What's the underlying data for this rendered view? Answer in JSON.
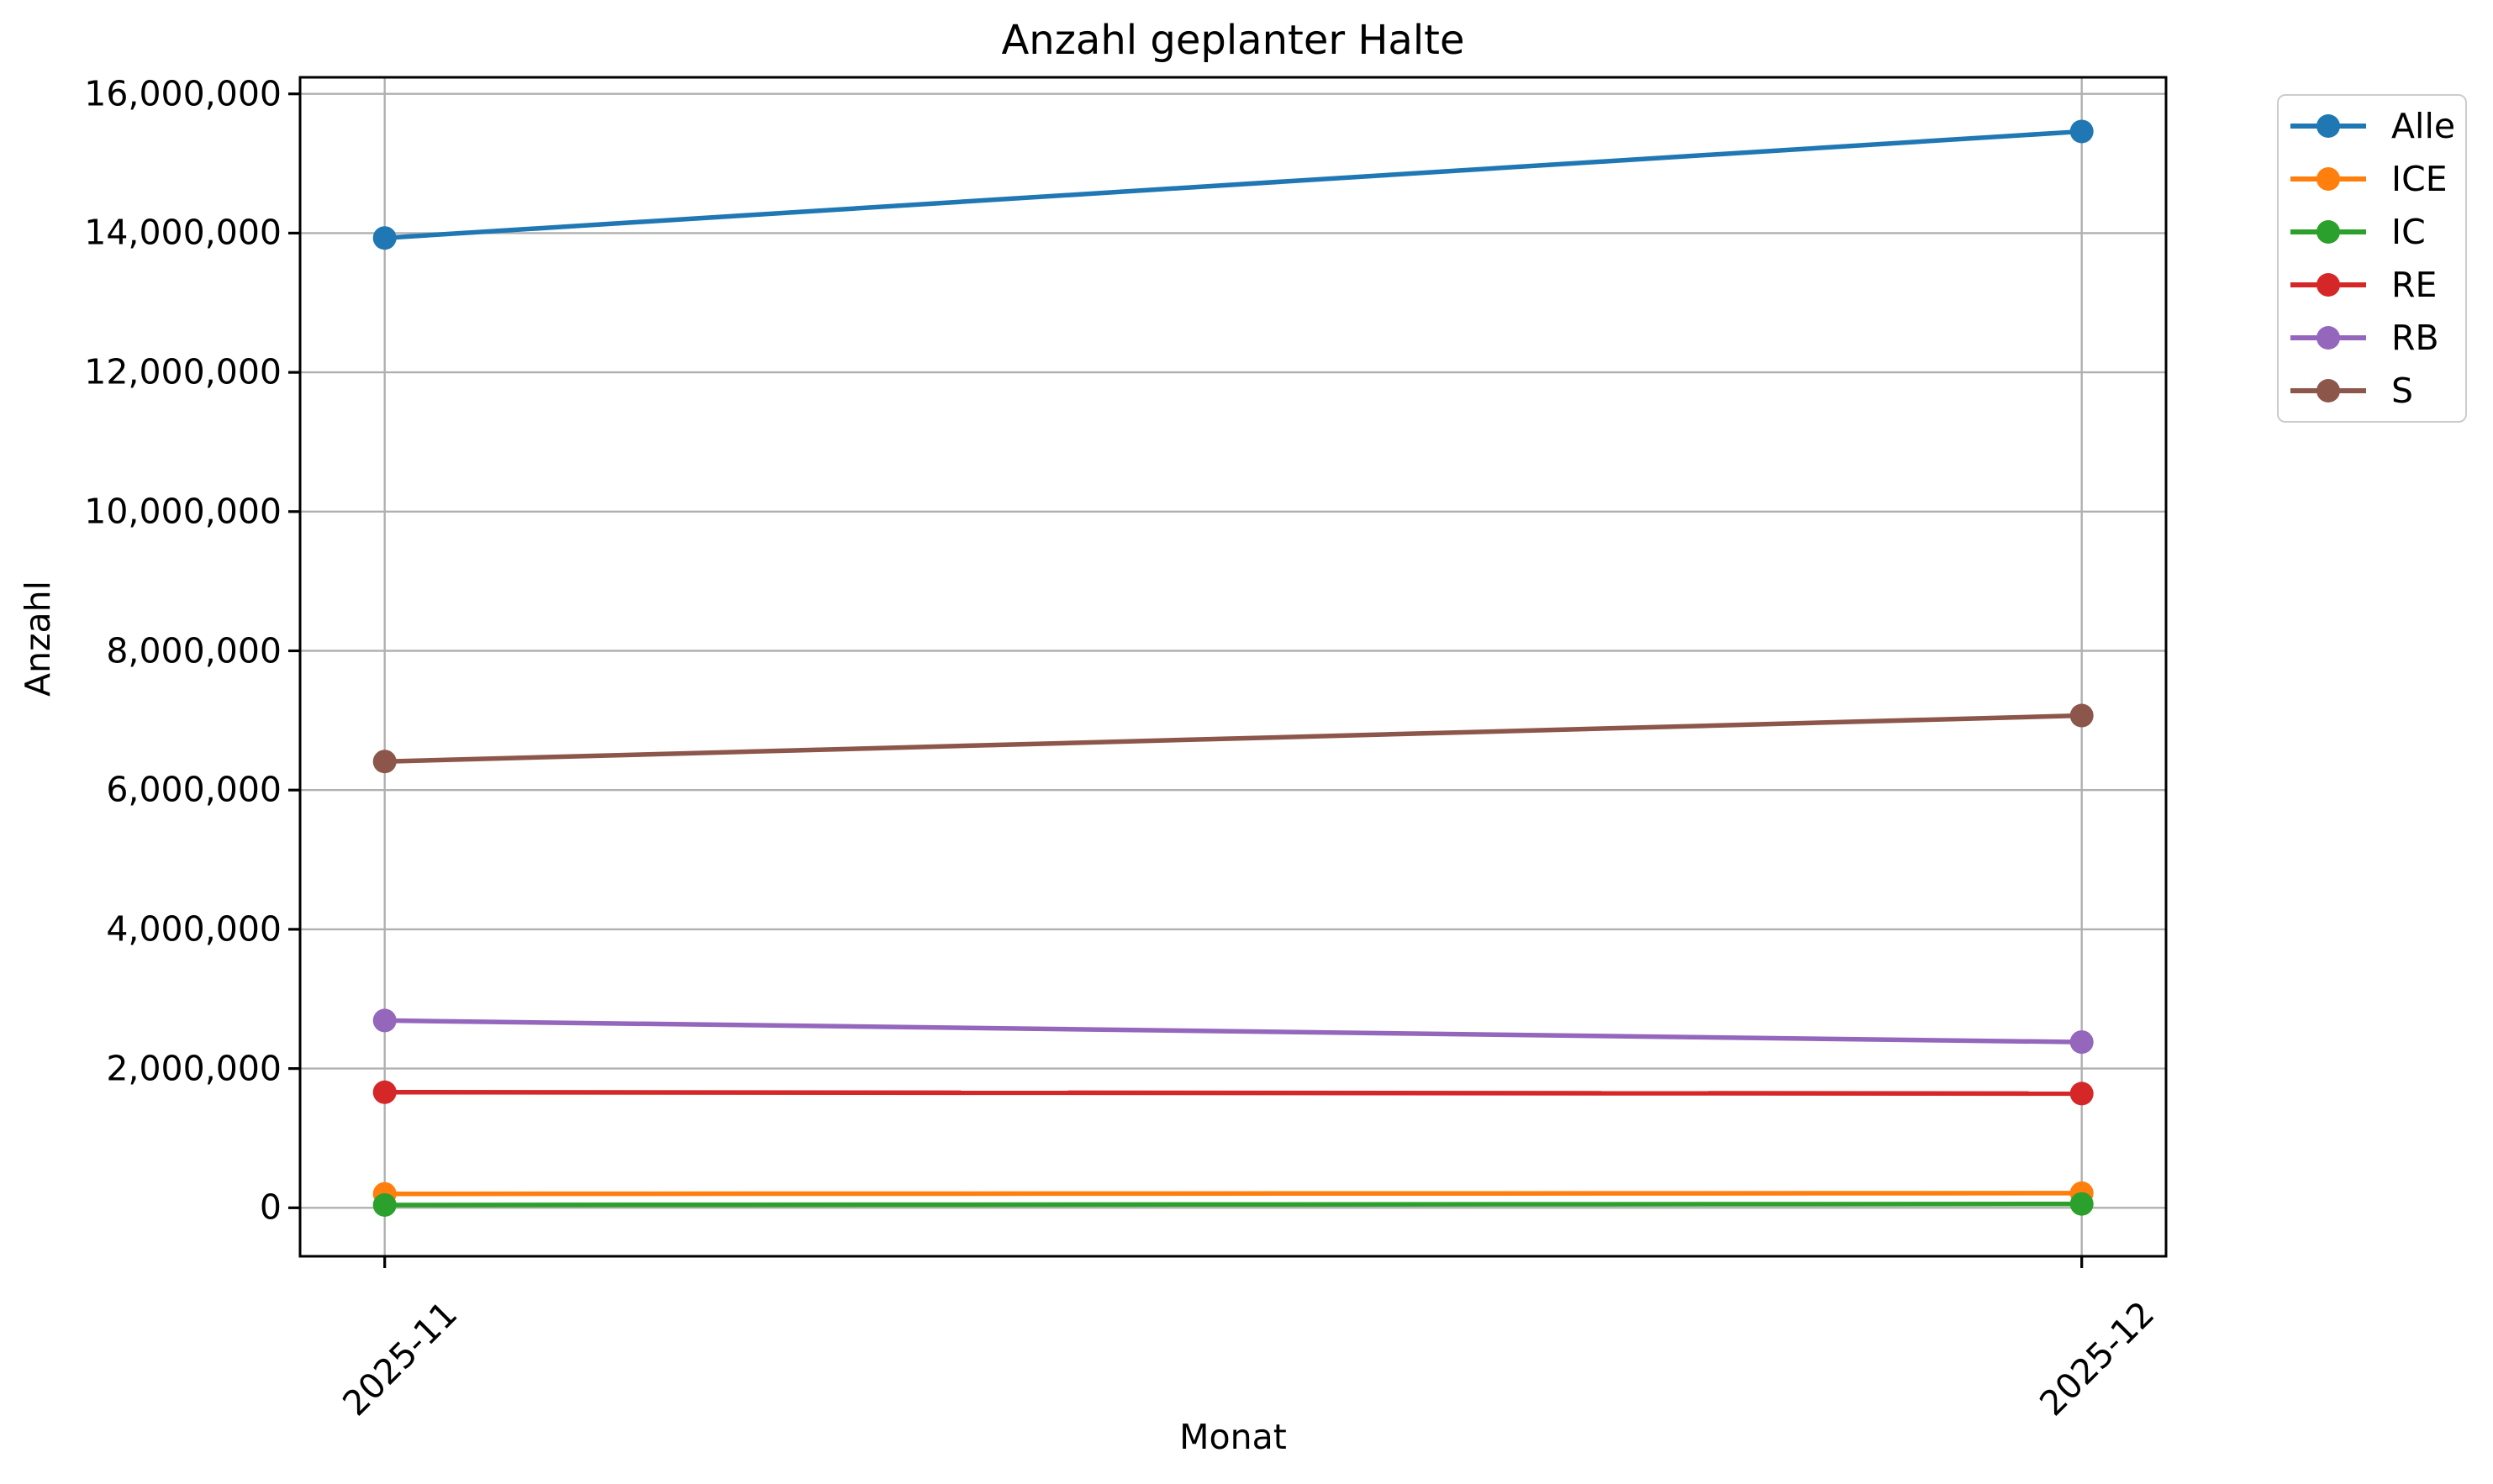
{
  "chart_data": {
    "type": "line",
    "title": "Anzahl geplanter Halte",
    "xlabel": "Monat",
    "ylabel": "Anzahl",
    "categories": [
      "2025-11",
      "2025-12"
    ],
    "series": [
      {
        "name": "Alle",
        "color": "#1f77b4",
        "values": [
          13930000,
          15460000
        ]
      },
      {
        "name": "ICE",
        "color": "#ff7f0e",
        "values": [
          200000,
          210000
        ]
      },
      {
        "name": "IC",
        "color": "#2ca02c",
        "values": [
          40000,
          55000
        ]
      },
      {
        "name": "RE",
        "color": "#d62728",
        "values": [
          1660000,
          1640000
        ]
      },
      {
        "name": "RB",
        "color": "#9467bd",
        "values": [
          2690000,
          2380000
        ]
      },
      {
        "name": "S",
        "color": "#8c564b",
        "values": [
          6410000,
          7070000
        ]
      }
    ],
    "yticks": [
      0,
      2000000,
      4000000,
      6000000,
      8000000,
      10000000,
      12000000,
      14000000,
      16000000
    ],
    "ytick_labels": [
      "0",
      "2,000,000",
      "4,000,000",
      "6,000,000",
      "8,000,000",
      "10,000,000",
      "12,000,000",
      "14,000,000",
      "16,000,000"
    ],
    "ylim": [
      -700000,
      16240000
    ],
    "xlim": [
      -0.05,
      1.05
    ],
    "grid": true,
    "grid_color": "#b0b0b0",
    "spine_color": "#000000",
    "legend_position": "outside-upper-right",
    "legend_border_color": "#cccccc",
    "marker": "o",
    "xtick_rotation": 45
  }
}
